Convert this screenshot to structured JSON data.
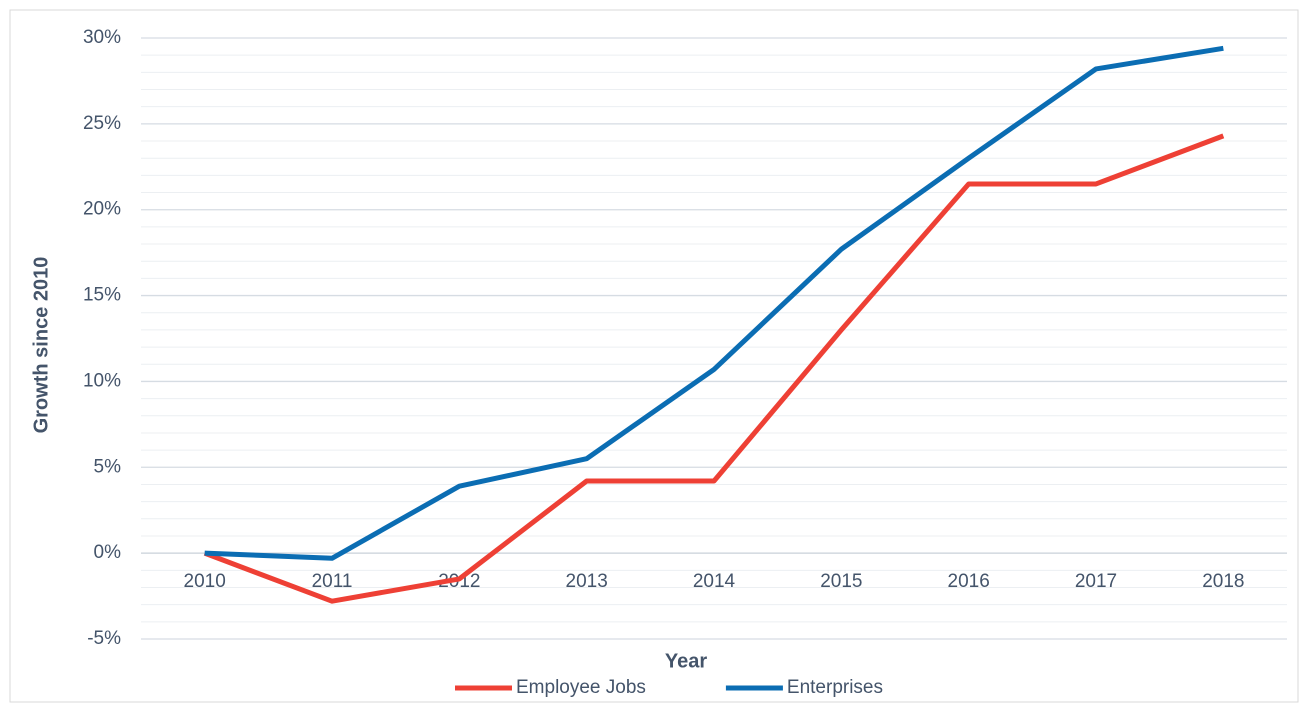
{
  "chart_data": {
    "type": "line",
    "x_label": "Year",
    "y_label": "Growth since 2010",
    "categories": [
      "2010",
      "2011",
      "2012",
      "2013",
      "2014",
      "2015",
      "2016",
      "2017",
      "2018"
    ],
    "series": [
      {
        "name": "Employee Jobs",
        "color": "#ee4035",
        "values": [
          0,
          -2.8,
          -1.5,
          4.2,
          4.2,
          13,
          21.5,
          21.5,
          24.3
        ]
      },
      {
        "name": "Enterprises",
        "color": "#0b6db3",
        "values": [
          0,
          -0.3,
          3.9,
          5.5,
          10.7,
          17.7,
          23,
          28.2,
          29.4
        ]
      }
    ],
    "ylim": [
      -5,
      30
    ],
    "yticks": [
      {
        "value": -5,
        "label": "-5%"
      },
      {
        "value": 0,
        "label": "0%"
      },
      {
        "value": 5,
        "label": "5%"
      },
      {
        "value": 10,
        "label": "10%"
      },
      {
        "value": 15,
        "label": "15%"
      },
      {
        "value": 20,
        "label": "20%"
      },
      {
        "value": 25,
        "label": "25%"
      },
      {
        "value": 30,
        "label": "30%"
      }
    ],
    "minor_yticks": [
      -4,
      -3,
      -2,
      -1,
      1,
      2,
      3,
      4,
      6,
      7,
      8,
      9,
      11,
      12,
      13,
      14,
      16,
      17,
      18,
      19,
      21,
      22,
      23,
      24,
      26,
      27,
      28,
      29
    ],
    "grid": true,
    "legend": "bottom"
  }
}
